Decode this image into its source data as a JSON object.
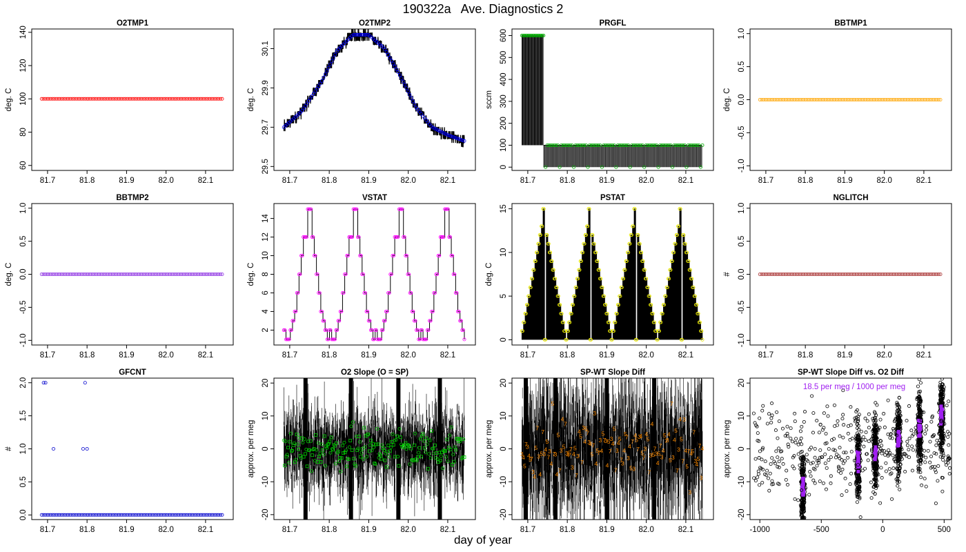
{
  "figure": {
    "title": "190322a   Ave. Diagnostics 2",
    "xlabel": "day of year"
  },
  "chart_data": [
    {
      "id": "o2tmp1",
      "type": "scatter",
      "title": "O2TMP1",
      "ylabel": "deg. C",
      "xlim": [
        81.66,
        82.17
      ],
      "ylim": [
        57,
        142
      ],
      "xticks": [
        "81.7",
        "81.8",
        "81.9",
        "82.0",
        "82.1"
      ],
      "yticks": [
        "60",
        "80",
        "100",
        "120",
        "140"
      ],
      "grid": false,
      "point_color": "#ff0000",
      "series": [
        {
          "x_range": [
            81.685,
            82.142
          ],
          "n": 100,
          "y_constant": 100
        }
      ]
    },
    {
      "id": "o2tmp2",
      "type": "line",
      "title": "O2TMP2",
      "ylabel": "deg. C",
      "xlim": [
        81.66,
        82.17
      ],
      "ylim": [
        29.48,
        30.2
      ],
      "xticks": [
        "81.7",
        "81.8",
        "81.9",
        "82.0",
        "82.1"
      ],
      "yticks": [
        "29.5",
        "29.7",
        "29.9",
        "30.1"
      ],
      "grid": false,
      "line_color": "#000000",
      "point_color": "#0000ff",
      "series": [
        {
          "x": [
            81.685,
            81.73,
            81.78,
            81.82,
            81.86,
            81.9,
            81.94,
            81.98,
            82.02,
            82.06,
            82.1,
            82.142
          ],
          "y": [
            29.7,
            29.78,
            29.93,
            30.09,
            30.17,
            30.17,
            30.1,
            29.96,
            29.8,
            29.7,
            29.66,
            29.63
          ]
        }
      ]
    },
    {
      "id": "prgfl",
      "type": "line",
      "title": "PRGFL",
      "ylabel": "sccm",
      "xlim": [
        81.66,
        82.17
      ],
      "ylim": [
        -15,
        630
      ],
      "xticks": [
        "81.7",
        "81.8",
        "81.9",
        "82.0",
        "82.1"
      ],
      "yticks": [
        "0",
        "100",
        "200",
        "300",
        "400",
        "500",
        "600"
      ],
      "grid": false,
      "line_color": "#000000",
      "point_color": "#00aa00",
      "series": [
        {
          "name": "purge",
          "segments": [
            {
              "x_range": [
                81.685,
                81.74
              ],
              "y_high": 600,
              "y_low": 100
            },
            {
              "x_range": [
                81.74,
                82.142
              ],
              "y_high": 100,
              "y_low": 0
            }
          ]
        }
      ]
    },
    {
      "id": "bbtmp1",
      "type": "scatter",
      "title": "BBTMP1",
      "ylabel": "deg. C",
      "xlim": [
        81.66,
        82.17
      ],
      "ylim": [
        -1.07,
        1.07
      ],
      "xticks": [
        "81.7",
        "81.8",
        "81.9",
        "82.0",
        "82.1"
      ],
      "yticks": [
        "-1.0",
        "-0.5",
        "0.0",
        "0.5",
        "1.0"
      ],
      "grid": false,
      "point_color": "#ffa500",
      "series": [
        {
          "x_range": [
            81.685,
            82.142
          ],
          "n": 100,
          "y_constant": 0
        }
      ]
    },
    {
      "id": "bbtmp2",
      "type": "scatter",
      "title": "BBTMP2",
      "ylabel": "deg. C",
      "xlim": [
        81.66,
        82.17
      ],
      "ylim": [
        -1.07,
        1.07
      ],
      "xticks": [
        "81.7",
        "81.8",
        "81.9",
        "82.0",
        "82.1"
      ],
      "yticks": [
        "-1.0",
        "-0.5",
        "0.0",
        "0.5",
        "1.0"
      ],
      "grid": false,
      "point_color": "#8a2be2",
      "series": [
        {
          "x_range": [
            81.685,
            82.142
          ],
          "n": 100,
          "y_constant": 0
        }
      ]
    },
    {
      "id": "vstat",
      "type": "line",
      "title": "VSTAT",
      "ylabel": "deg. C",
      "xlim": [
        81.66,
        82.17
      ],
      "ylim": [
        0.4,
        15.6
      ],
      "xticks": [
        "81.7",
        "81.8",
        "81.9",
        "82.0",
        "82.1"
      ],
      "yticks": [
        "2",
        "4",
        "6",
        "8",
        "10",
        "12",
        "14"
      ],
      "grid": false,
      "line_color": "#000000",
      "point_color": "#ff00ff",
      "series": [
        {
          "pattern": [
            2,
            1,
            1,
            2,
            3,
            4,
            6,
            8,
            10,
            12,
            12,
            15,
            15,
            12,
            10,
            8,
            6,
            4,
            3,
            2,
            1
          ],
          "repeats": 4,
          "x_range": [
            81.685,
            82.142
          ]
        }
      ]
    },
    {
      "id": "pstat",
      "type": "line",
      "title": "PSTAT",
      "ylabel": "deg. C",
      "xlim": [
        81.66,
        82.17
      ],
      "ylim": [
        -0.6,
        15.6
      ],
      "xticks": [
        "81.7",
        "81.8",
        "81.9",
        "82.0",
        "82.1"
      ],
      "yticks": [
        "0",
        "5",
        "10",
        "15"
      ],
      "grid": false,
      "line_color": "#000000",
      "point_color": "#e6e600",
      "series": [
        {
          "pattern": [
            1,
            2,
            3,
            4,
            5,
            6,
            7,
            8,
            9,
            10,
            11,
            12,
            13,
            15,
            0,
            12,
            11,
            10,
            9,
            8,
            7,
            6,
            5,
            4,
            3,
            2,
            1,
            0
          ],
          "repeats": 4,
          "x_range": [
            81.685,
            82.142
          ]
        }
      ]
    },
    {
      "id": "nglitch",
      "type": "scatter",
      "title": "NGLITCH",
      "ylabel": "#",
      "xlim": [
        81.66,
        82.17
      ],
      "ylim": [
        -1.07,
        1.07
      ],
      "xticks": [
        "81.7",
        "81.8",
        "81.9",
        "82.0",
        "82.1"
      ],
      "yticks": [
        "-1.0",
        "-0.5",
        "0.0",
        "0.5",
        "1.0"
      ],
      "grid": false,
      "point_color": "#a52a2a",
      "series": [
        {
          "x_range": [
            81.685,
            82.142
          ],
          "n": 100,
          "y_constant": 0
        }
      ]
    },
    {
      "id": "gfcnt",
      "type": "scatter",
      "title": "GFCNT",
      "ylabel": "#",
      "xlim": [
        81.66,
        82.17
      ],
      "ylim": [
        -0.07,
        2.07
      ],
      "xticks": [
        "81.7",
        "81.8",
        "81.9",
        "82.0",
        "82.1"
      ],
      "yticks": [
        "0.0",
        "0.5",
        "1.0",
        "1.5",
        "2.0"
      ],
      "grid": false,
      "point_color": "#0000cd",
      "series": [
        {
          "x_range": [
            81.685,
            82.142
          ],
          "n": 100,
          "y_constant": 0,
          "outliers": [
            [
              81.69,
              2
            ],
            [
              81.695,
              2
            ],
            [
              81.715,
              1
            ],
            [
              81.79,
              1
            ],
            [
              81.795,
              2
            ],
            [
              81.8,
              1
            ]
          ]
        }
      ]
    },
    {
      "id": "o2slope",
      "type": "line",
      "title": "O2 Slope (O = SP)",
      "ylabel": "approx. per meg",
      "xlim": [
        81.66,
        82.17
      ],
      "ylim": [
        -21.5,
        21.5
      ],
      "xticks": [
        "81.7",
        "81.8",
        "81.9",
        "82.0",
        "82.1"
      ],
      "yticks": [
        "-20",
        "-10",
        "0",
        "10",
        "20"
      ],
      "grid": false,
      "line_color": "#000000",
      "point_color": "#00cc00",
      "series": [
        {
          "x_range": [
            81.685,
            82.142
          ],
          "y_center": 0,
          "y_spread": 12
        }
      ]
    },
    {
      "id": "spwt",
      "type": "line",
      "title": "SP-WT Slope Diff",
      "ylabel": "approx. per meg",
      "xlim": [
        81.66,
        82.17
      ],
      "ylim": [
        -21.5,
        21.5
      ],
      "xticks": [
        "81.7",
        "81.8",
        "81.9",
        "82.0",
        "82.1"
      ],
      "yticks": [
        "-20",
        "-10",
        "0",
        "10",
        "20"
      ],
      "grid": false,
      "line_color": "#000000",
      "point_color": "#ff8c00",
      "series": [
        {
          "x_range": [
            81.685,
            82.142
          ],
          "y_center": 0,
          "y_spread": 20,
          "markers": [
            "3",
            "4",
            "5",
            "7"
          ]
        }
      ]
    },
    {
      "id": "spwt-vs-o2",
      "type": "scatter",
      "title": "SP-WT Slope Diff vs. O2 Diff",
      "ylabel": "approx. per meg",
      "xlim": [
        -1080,
        560
      ],
      "ylim": [
        -21.5,
        21.5
      ],
      "xticks": [
        "-1000",
        "-500",
        "0",
        "500"
      ],
      "yticks": [
        "-20",
        "-10",
        "0",
        "10",
        "20"
      ],
      "grid": false,
      "point_color": "#000000",
      "fit_color": "#a020f0",
      "annotation": "18.5 per meg / 1000 per meg",
      "series": [
        {
          "clusters": [
            [
              -650,
              -12
            ],
            [
              -200,
              -4
            ],
            [
              -60,
              -1
            ],
            [
              130,
              3
            ],
            [
              300,
              6
            ],
            [
              480,
              10
            ]
          ]
        }
      ]
    }
  ]
}
